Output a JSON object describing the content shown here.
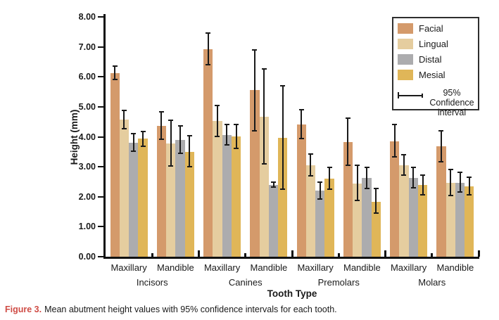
{
  "figure": {
    "caption_label": "Figure 3.",
    "caption_text": "Mean abutment height values with 95% confidence intervals for each tooth.",
    "caption_accent_color": "#cf4c45"
  },
  "chart_data": {
    "type": "bar",
    "title": "",
    "xlabel": "Tooth Type",
    "ylabel": "Height (mm)",
    "ylim": [
      0,
      8
    ],
    "ytick_labels": [
      "0.00",
      "1.00",
      "2.00",
      "3.00",
      "4.00",
      "5.00",
      "6.00",
      "7.00",
      "8.00"
    ],
    "grid": false,
    "legend_position": "top-right",
    "group_labels": [
      "Maxillary",
      "Mandible",
      "Maxillary",
      "Mandible",
      "Maxillary",
      "Mandible",
      "Maxillary",
      "Mandible"
    ],
    "tooth_types": [
      "Incisors",
      "Canines",
      "Premolars",
      "Molars"
    ],
    "series": [
      {
        "name": "Facial",
        "color": "#d49a6b",
        "values": [
          6.13,
          4.36,
          6.91,
          5.55,
          4.41,
          3.83,
          3.85,
          3.68
        ],
        "ci": [
          [
            5.92,
            6.35
          ],
          [
            3.92,
            4.83
          ],
          [
            6.4,
            7.45
          ],
          [
            4.21,
            6.9
          ],
          [
            3.95,
            4.9
          ],
          [
            3.04,
            4.63
          ],
          [
            3.33,
            4.4
          ],
          [
            3.17,
            4.2
          ]
        ]
      },
      {
        "name": "Lingual",
        "color": "#e5cd9f",
        "values": [
          4.57,
          3.78,
          4.53,
          4.67,
          3.05,
          2.44,
          3.05,
          2.46
        ],
        "ci": [
          [
            4.28,
            4.87
          ],
          [
            3.03,
            4.55
          ],
          [
            4.02,
            5.05
          ],
          [
            3.1,
            6.26
          ],
          [
            2.7,
            3.42
          ],
          [
            1.87,
            3.06
          ],
          [
            2.72,
            3.4
          ],
          [
            2.04,
            2.91
          ]
        ]
      },
      {
        "name": "Distal",
        "color": "#acacae",
        "values": [
          3.81,
          3.9,
          4.06,
          2.4,
          2.2,
          2.62,
          2.63,
          2.47
        ],
        "ci": [
          [
            3.52,
            4.1
          ],
          [
            3.44,
            4.36
          ],
          [
            3.74,
            4.4
          ],
          [
            2.33,
            2.48
          ],
          [
            1.92,
            2.49
          ],
          [
            2.28,
            2.99
          ],
          [
            2.3,
            2.98
          ],
          [
            2.16,
            2.82
          ]
        ]
      },
      {
        "name": "Mesial",
        "color": "#e0b658",
        "values": [
          3.93,
          3.5,
          4.02,
          3.96,
          2.61,
          1.84,
          2.39,
          2.35
        ],
        "ci": [
          [
            3.68,
            4.18
          ],
          [
            3.01,
            4.03
          ],
          [
            3.62,
            4.42
          ],
          [
            2.26,
            5.7
          ],
          [
            2.25,
            2.97
          ],
          [
            1.45,
            2.28
          ],
          [
            2.07,
            2.72
          ],
          [
            2.06,
            2.66
          ]
        ]
      }
    ],
    "legend": {
      "ci_label": "95% Confidence interval"
    },
    "error_bar_color": "#1a1a1a",
    "axis_color": "#111111"
  }
}
